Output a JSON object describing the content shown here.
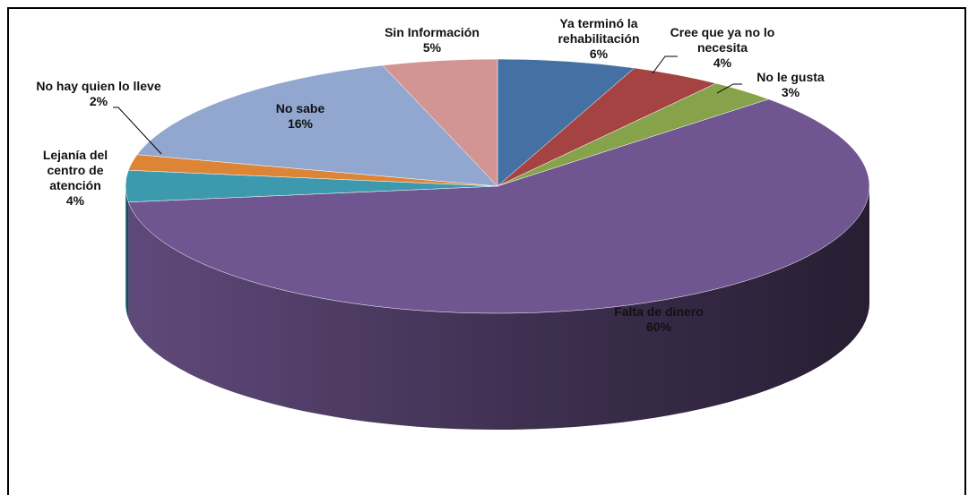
{
  "chart_data": {
    "type": "pie",
    "categories": [
      "Ya terminó la rehabilitación",
      "Cree que ya no lo necesita",
      "No le gusta",
      "Falta de dinero",
      "Lejanía del centro de atención",
      "No hay quien lo lleve",
      "No sabe",
      "Sin Información"
    ],
    "values": [
      6,
      4,
      3,
      60,
      4,
      2,
      16,
      5
    ],
    "value_labels": [
      "6%",
      "4%",
      "3%",
      "60%",
      "4%",
      "2%",
      "16%",
      "5%"
    ],
    "colors": [
      "#4470a4",
      "#a44341",
      "#86a24a",
      "#705690",
      "#3d99ae",
      "#dd8537",
      "#91a7cf",
      "#d39594"
    ]
  }
}
